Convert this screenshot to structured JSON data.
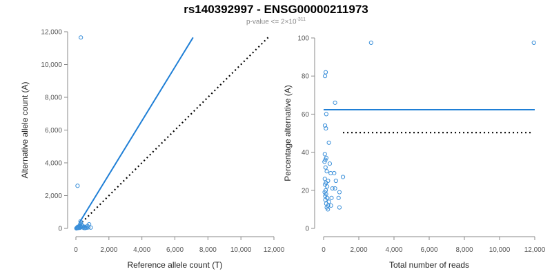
{
  "title": "rs140392997 - ENSG00000211973",
  "subtitle": {
    "prefix": "p-value <= 2×10",
    "exponent": "-311"
  },
  "colors": {
    "points": "#3a8fd9",
    "fit": "#1f7fd6",
    "reference": "#000000",
    "axis": "#888888"
  },
  "chart_data": [
    {
      "type": "scatter",
      "xlabel": "Reference allele count (T)",
      "ylabel": "Alternative allele count (A)",
      "xlim": [
        0,
        12000
      ],
      "ylim": [
        0,
        12000
      ],
      "xticks": [
        0,
        2000,
        4000,
        6000,
        8000,
        10000,
        12000
      ],
      "yticks": [
        0,
        2000,
        4000,
        6000,
        8000,
        10000,
        12000
      ],
      "xtick_labels": [
        "0",
        "2,000",
        "4,000",
        "6,000",
        "8,000",
        "10,000",
        "12,000"
      ],
      "ytick_labels": [
        "0",
        "2,000",
        "4,000",
        "6,000",
        "8,000",
        "10,000",
        "12,000"
      ],
      "points": [
        [
          300,
          11650
        ],
        [
          100,
          2600
        ],
        [
          280,
          430
        ],
        [
          300,
          350
        ],
        [
          260,
          250
        ],
        [
          350,
          200
        ],
        [
          400,
          150
        ],
        [
          200,
          120
        ],
        [
          120,
          100
        ],
        [
          60,
          40
        ],
        [
          80,
          20
        ],
        [
          150,
          60
        ],
        [
          220,
          80
        ],
        [
          500,
          100
        ],
        [
          600,
          70
        ],
        [
          700,
          150
        ],
        [
          800,
          250
        ],
        [
          750,
          60
        ],
        [
          900,
          50
        ],
        [
          50,
          10
        ],
        [
          30,
          5
        ],
        [
          180,
          30
        ],
        [
          250,
          40
        ],
        [
          320,
          90
        ],
        [
          420,
          60
        ],
        [
          480,
          30
        ],
        [
          550,
          20
        ],
        [
          650,
          40
        ],
        [
          100,
          50
        ],
        [
          140,
          30
        ]
      ],
      "lines": [
        {
          "name": "fit",
          "style": "solid",
          "points": [
            [
              200,
              330
            ],
            [
              7100,
              11650
            ]
          ]
        },
        {
          "name": "reference",
          "style": "dotted",
          "points": [
            [
              200,
              200
            ],
            [
              11650,
              11650
            ]
          ]
        }
      ],
      "grid": false,
      "legend": "none"
    },
    {
      "type": "scatter",
      "xlabel": "Total number of reads",
      "ylabel": "Percentage alternative (A)",
      "xlim": [
        0,
        12000
      ],
      "ylim": [
        0,
        100
      ],
      "xticks": [
        0,
        2000,
        4000,
        6000,
        8000,
        10000,
        12000
      ],
      "yticks": [
        0,
        20,
        40,
        60,
        80,
        100
      ],
      "xtick_labels": [
        "0",
        "2,000",
        "4,000",
        "6,000",
        "8,000",
        "10,000",
        "12,000"
      ],
      "ytick_labels": [
        "0",
        "20",
        "40",
        "60",
        "80",
        "100"
      ],
      "points": [
        [
          2700,
          97.5
        ],
        [
          11950,
          97.5
        ],
        [
          120,
          82
        ],
        [
          80,
          80
        ],
        [
          650,
          66
        ],
        [
          150,
          60
        ],
        [
          80,
          54
        ],
        [
          130,
          52.5
        ],
        [
          300,
          45
        ],
        [
          70,
          39
        ],
        [
          150,
          37
        ],
        [
          100,
          36
        ],
        [
          50,
          35
        ],
        [
          350,
          34
        ],
        [
          110,
          32
        ],
        [
          180,
          30
        ],
        [
          400,
          29
        ],
        [
          600,
          29
        ],
        [
          1100,
          27
        ],
        [
          70,
          26
        ],
        [
          250,
          25
        ],
        [
          700,
          25
        ],
        [
          130,
          24
        ],
        [
          80,
          23
        ],
        [
          200,
          22
        ],
        [
          500,
          21
        ],
        [
          650,
          21
        ],
        [
          120,
          20
        ],
        [
          60,
          19
        ],
        [
          900,
          19
        ],
        [
          140,
          18
        ],
        [
          90,
          17
        ],
        [
          200,
          16
        ],
        [
          450,
          16
        ],
        [
          850,
          16
        ],
        [
          100,
          15
        ],
        [
          300,
          14
        ],
        [
          150,
          13
        ],
        [
          250,
          12
        ],
        [
          420,
          12
        ],
        [
          180,
          11
        ],
        [
          900,
          11
        ],
        [
          240,
          10
        ]
      ],
      "lines": [
        {
          "name": "fit",
          "style": "solid",
          "points": [
            [
              0,
              62.3
            ],
            [
              12000,
              62.3
            ]
          ]
        },
        {
          "name": "reference",
          "style": "dotted",
          "points": [
            [
              1100,
              50.3
            ],
            [
              11800,
              50.3
            ]
          ]
        }
      ],
      "grid": false,
      "legend": "none"
    }
  ]
}
